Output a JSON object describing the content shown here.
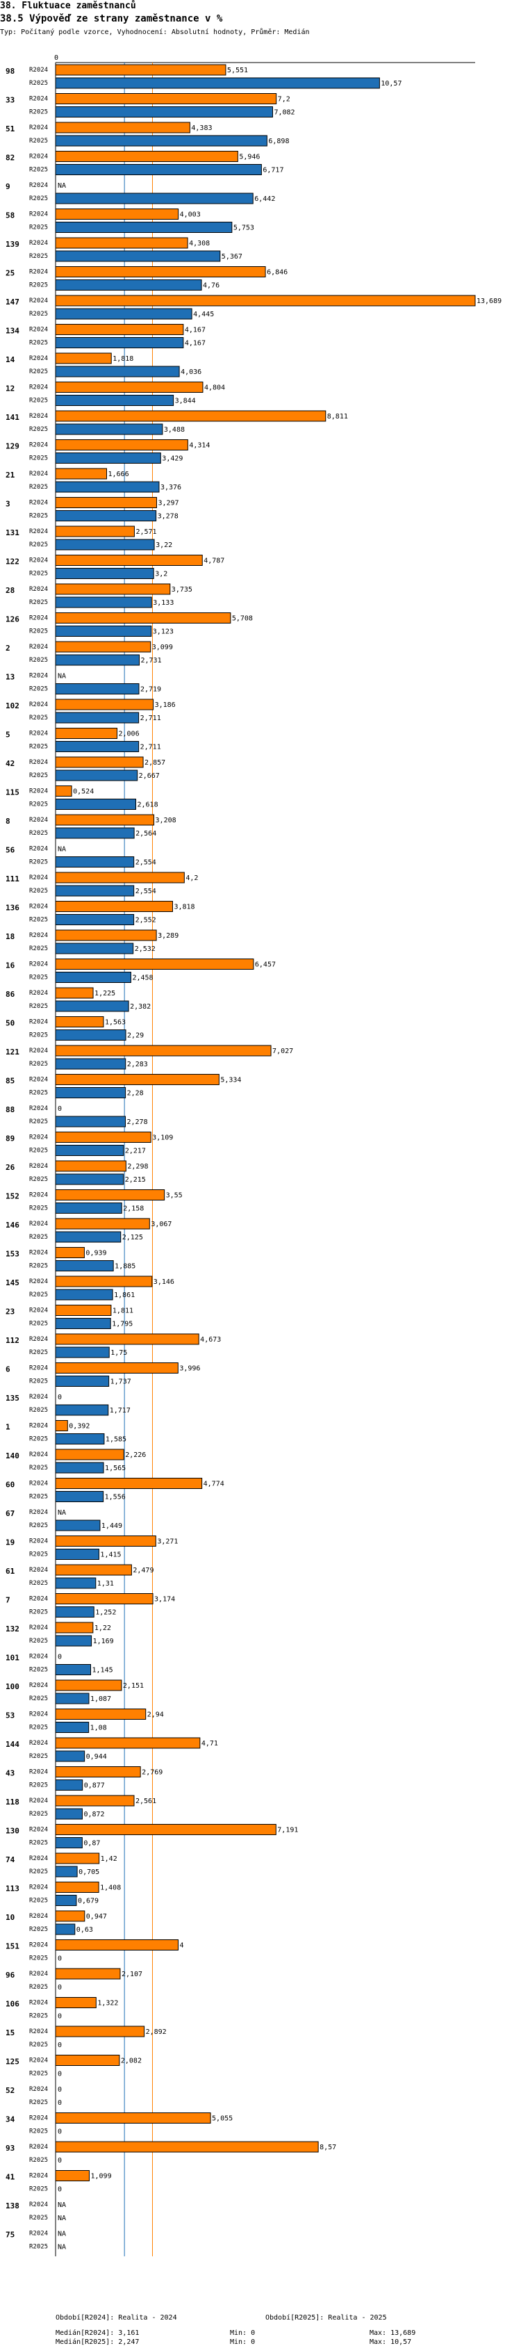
{
  "header": {
    "title": "38. Fluktuace zaměstnanců",
    "subtitle": "38.5 Výpověď ze strany zaměstnance v %",
    "info": "Typ: Počítaný podle vzorce, Vyhodnocení: Absolutní hodnoty, Průměr: Medián"
  },
  "footer": {
    "period1": "Období[R2024]: Realita - 2024",
    "period2": "Období[R2025]: Realita - 2025",
    "median1": "Medián[R2024]: 3,161",
    "median2": "Medián[R2025]: 2,247",
    "min1": "Min: 0",
    "min2": "Min: 0",
    "max1": "Max: 13,689",
    "max2": "Max: 10,57"
  },
  "colors": {
    "r2024": "#ff8000",
    "r2025": "#1f6fb5",
    "median2024": "#ff8000",
    "median2025": "#1f6fb5"
  },
  "chart_data": {
    "type": "bar",
    "orientation": "horizontal",
    "axis_label": "0",
    "series_names": [
      "R2024",
      "R2025"
    ],
    "xlim": [
      0,
      13.689
    ],
    "medians": {
      "R2024": 3.161,
      "R2025": 2.247
    },
    "categories": [
      {
        "id": "98",
        "r2024": 5.551,
        "l2024": "5,551",
        "r2025": 10.57,
        "l2025": "10,57"
      },
      {
        "id": "33",
        "r2024": 7.2,
        "l2024": "7,2",
        "r2025": 7.082,
        "l2025": "7,082"
      },
      {
        "id": "51",
        "r2024": 4.383,
        "l2024": "4,383",
        "r2025": 6.898,
        "l2025": "6,898"
      },
      {
        "id": "82",
        "r2024": 5.946,
        "l2024": "5,946",
        "r2025": 6.717,
        "l2025": "6,717"
      },
      {
        "id": "9",
        "r2024": null,
        "l2024": "NA",
        "r2025": 6.442,
        "l2025": "6,442"
      },
      {
        "id": "58",
        "r2024": 4.003,
        "l2024": "4,003",
        "r2025": 5.753,
        "l2025": "5,753"
      },
      {
        "id": "139",
        "r2024": 4.308,
        "l2024": "4,308",
        "r2025": 5.367,
        "l2025": "5,367"
      },
      {
        "id": "25",
        "r2024": 6.846,
        "l2024": "6,846",
        "r2025": 4.76,
        "l2025": "4,76"
      },
      {
        "id": "147",
        "r2024": 13.689,
        "l2024": "13,689",
        "r2025": 4.445,
        "l2025": "4,445"
      },
      {
        "id": "134",
        "r2024": 4.167,
        "l2024": "4,167",
        "r2025": 4.167,
        "l2025": "4,167"
      },
      {
        "id": "14",
        "r2024": 1.818,
        "l2024": "1,818",
        "r2025": 4.036,
        "l2025": "4,036"
      },
      {
        "id": "12",
        "r2024": 4.804,
        "l2024": "4,804",
        "r2025": 3.844,
        "l2025": "3,844"
      },
      {
        "id": "141",
        "r2024": 8.811,
        "l2024": "8,811",
        "r2025": 3.488,
        "l2025": "3,488"
      },
      {
        "id": "129",
        "r2024": 4.314,
        "l2024": "4,314",
        "r2025": 3.429,
        "l2025": "3,429"
      },
      {
        "id": "21",
        "r2024": 1.666,
        "l2024": "1,666",
        "r2025": 3.376,
        "l2025": "3,376"
      },
      {
        "id": "3",
        "r2024": 3.297,
        "l2024": "3,297",
        "r2025": 3.278,
        "l2025": "3,278"
      },
      {
        "id": "131",
        "r2024": 2.571,
        "l2024": "2,571",
        "r2025": 3.22,
        "l2025": "3,22"
      },
      {
        "id": "122",
        "r2024": 4.787,
        "l2024": "4,787",
        "r2025": 3.2,
        "l2025": "3,2"
      },
      {
        "id": "28",
        "r2024": 3.735,
        "l2024": "3,735",
        "r2025": 3.133,
        "l2025": "3,133"
      },
      {
        "id": "126",
        "r2024": 5.708,
        "l2024": "5,708",
        "r2025": 3.123,
        "l2025": "3,123"
      },
      {
        "id": "2",
        "r2024": 3.099,
        "l2024": "3,099",
        "r2025": 2.731,
        "l2025": "2,731"
      },
      {
        "id": "13",
        "r2024": null,
        "l2024": "NA",
        "r2025": 2.719,
        "l2025": "2,719"
      },
      {
        "id": "102",
        "r2024": 3.186,
        "l2024": "3,186",
        "r2025": 2.711,
        "l2025": "2,711"
      },
      {
        "id": "5",
        "r2024": 2.006,
        "l2024": "2,006",
        "r2025": 2.711,
        "l2025": "2,711"
      },
      {
        "id": "42",
        "r2024": 2.857,
        "l2024": "2,857",
        "r2025": 2.667,
        "l2025": "2,667"
      },
      {
        "id": "115",
        "r2024": 0.524,
        "l2024": "0,524",
        "r2025": 2.618,
        "l2025": "2,618"
      },
      {
        "id": "8",
        "r2024": 3.208,
        "l2024": "3,208",
        "r2025": 2.564,
        "l2025": "2,564"
      },
      {
        "id": "56",
        "r2024": null,
        "l2024": "NA",
        "r2025": 2.554,
        "l2025": "2,554"
      },
      {
        "id": "111",
        "r2024": 4.2,
        "l2024": "4,2",
        "r2025": 2.554,
        "l2025": "2,554"
      },
      {
        "id": "136",
        "r2024": 3.818,
        "l2024": "3,818",
        "r2025": 2.552,
        "l2025": "2,552"
      },
      {
        "id": "18",
        "r2024": 3.289,
        "l2024": "3,289",
        "r2025": 2.532,
        "l2025": "2,532"
      },
      {
        "id": "16",
        "r2024": 6.457,
        "l2024": "6,457",
        "r2025": 2.458,
        "l2025": "2,458"
      },
      {
        "id": "86",
        "r2024": 1.225,
        "l2024": "1,225",
        "r2025": 2.382,
        "l2025": "2,382"
      },
      {
        "id": "50",
        "r2024": 1.563,
        "l2024": "1,563",
        "r2025": 2.29,
        "l2025": "2,29"
      },
      {
        "id": "121",
        "r2024": 7.027,
        "l2024": "7,027",
        "r2025": 2.283,
        "l2025": "2,283"
      },
      {
        "id": "85",
        "r2024": 5.334,
        "l2024": "5,334",
        "r2025": 2.28,
        "l2025": "2,28"
      },
      {
        "id": "88",
        "r2024": 0,
        "l2024": "0",
        "r2025": 2.278,
        "l2025": "2,278"
      },
      {
        "id": "89",
        "r2024": 3.109,
        "l2024": "3,109",
        "r2025": 2.217,
        "l2025": "2,217"
      },
      {
        "id": "26",
        "r2024": 2.298,
        "l2024": "2,298",
        "r2025": 2.215,
        "l2025": "2,215"
      },
      {
        "id": "152",
        "r2024": 3.55,
        "l2024": "3,55",
        "r2025": 2.158,
        "l2025": "2,158"
      },
      {
        "id": "146",
        "r2024": 3.067,
        "l2024": "3,067",
        "r2025": 2.125,
        "l2025": "2,125"
      },
      {
        "id": "153",
        "r2024": 0.939,
        "l2024": "0,939",
        "r2025": 1.885,
        "l2025": "1,885"
      },
      {
        "id": "145",
        "r2024": 3.146,
        "l2024": "3,146",
        "r2025": 1.861,
        "l2025": "1,861"
      },
      {
        "id": "23",
        "r2024": 1.811,
        "l2024": "1,811",
        "r2025": 1.795,
        "l2025": "1,795"
      },
      {
        "id": "112",
        "r2024": 4.673,
        "l2024": "4,673",
        "r2025": 1.75,
        "l2025": "1,75"
      },
      {
        "id": "6",
        "r2024": 3.996,
        "l2024": "3,996",
        "r2025": 1.737,
        "l2025": "1,737"
      },
      {
        "id": "135",
        "r2024": 0,
        "l2024": "0",
        "r2025": 1.717,
        "l2025": "1,717"
      },
      {
        "id": "1",
        "r2024": 0.392,
        "l2024": "0,392",
        "r2025": 1.585,
        "l2025": "1,585"
      },
      {
        "id": "140",
        "r2024": 2.226,
        "l2024": "2,226",
        "r2025": 1.565,
        "l2025": "1,565"
      },
      {
        "id": "60",
        "r2024": 4.774,
        "l2024": "4,774",
        "r2025": 1.556,
        "l2025": "1,556"
      },
      {
        "id": "67",
        "r2024": null,
        "l2024": "NA",
        "r2025": 1.449,
        "l2025": "1,449"
      },
      {
        "id": "19",
        "r2024": 3.271,
        "l2024": "3,271",
        "r2025": 1.415,
        "l2025": "1,415"
      },
      {
        "id": "61",
        "r2024": 2.479,
        "l2024": "2,479",
        "r2025": 1.31,
        "l2025": "1,31"
      },
      {
        "id": "7",
        "r2024": 3.174,
        "l2024": "3,174",
        "r2025": 1.252,
        "l2025": "1,252"
      },
      {
        "id": "132",
        "r2024": 1.22,
        "l2024": "1,22",
        "r2025": 1.169,
        "l2025": "1,169"
      },
      {
        "id": "101",
        "r2024": 0,
        "l2024": "0",
        "r2025": 1.145,
        "l2025": "1,145"
      },
      {
        "id": "100",
        "r2024": 2.151,
        "l2024": "2,151",
        "r2025": 1.087,
        "l2025": "1,087"
      },
      {
        "id": "53",
        "r2024": 2.94,
        "l2024": "2,94",
        "r2025": 1.08,
        "l2025": "1,08"
      },
      {
        "id": "144",
        "r2024": 4.71,
        "l2024": "4,71",
        "r2025": 0.944,
        "l2025": "0,944"
      },
      {
        "id": "43",
        "r2024": 2.769,
        "l2024": "2,769",
        "r2025": 0.877,
        "l2025": "0,877"
      },
      {
        "id": "118",
        "r2024": 2.561,
        "l2024": "2,561",
        "r2025": 0.872,
        "l2025": "0,872"
      },
      {
        "id": "130",
        "r2024": 7.191,
        "l2024": "7,191",
        "r2025": 0.87,
        "l2025": "0,87"
      },
      {
        "id": "74",
        "r2024": 1.42,
        "l2024": "1,42",
        "r2025": 0.705,
        "l2025": "0,705"
      },
      {
        "id": "113",
        "r2024": 1.408,
        "l2024": "1,408",
        "r2025": 0.679,
        "l2025": "0,679"
      },
      {
        "id": "10",
        "r2024": 0.947,
        "l2024": "0,947",
        "r2025": 0.63,
        "l2025": "0,63"
      },
      {
        "id": "151",
        "r2024": 4,
        "l2024": "4",
        "r2025": 0,
        "l2025": "0"
      },
      {
        "id": "96",
        "r2024": 2.107,
        "l2024": "2,107",
        "r2025": 0,
        "l2025": "0"
      },
      {
        "id": "106",
        "r2024": 1.322,
        "l2024": "1,322",
        "r2025": 0,
        "l2025": "0"
      },
      {
        "id": "15",
        "r2024": 2.892,
        "l2024": "2,892",
        "r2025": 0,
        "l2025": "0"
      },
      {
        "id": "125",
        "r2024": 2.082,
        "l2024": "2,082",
        "r2025": 0,
        "l2025": "0"
      },
      {
        "id": "52",
        "r2024": 0,
        "l2024": "0",
        "r2025": 0,
        "l2025": "0"
      },
      {
        "id": "34",
        "r2024": 5.055,
        "l2024": "5,055",
        "r2025": 0,
        "l2025": "0"
      },
      {
        "id": "93",
        "r2024": 8.57,
        "l2024": "8,57",
        "r2025": 0,
        "l2025": "0"
      },
      {
        "id": "41",
        "r2024": 1.099,
        "l2024": "1,099",
        "r2025": 0,
        "l2025": "0"
      },
      {
        "id": "138",
        "r2024": null,
        "l2024": "NA",
        "r2025": null,
        "l2025": "NA"
      },
      {
        "id": "75",
        "r2024": null,
        "l2024": "NA",
        "r2025": null,
        "l2025": "NA"
      }
    ]
  }
}
